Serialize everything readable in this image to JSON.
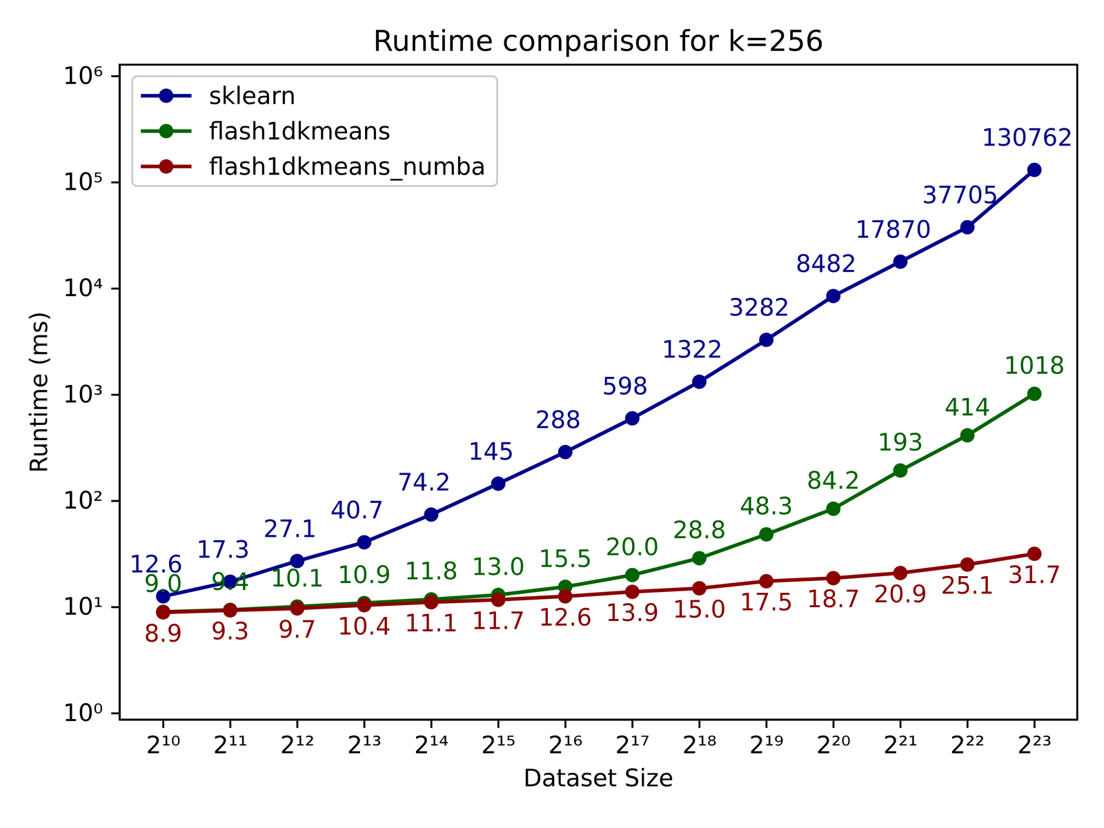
{
  "chart_data": {
    "type": "line",
    "title": "Runtime comparison for k=256",
    "xlabel": "Dataset Size",
    "ylabel": "Runtime (ms)",
    "log": true,
    "grid": false,
    "legend": "upper left",
    "data_labels": true,
    "x": [
      1024,
      2048,
      4096,
      8192,
      16384,
      32768,
      65536,
      131072,
      262144,
      524288,
      1048576,
      2097152,
      4194304,
      8388608
    ],
    "xlim": [
      652.6,
      13069000
    ],
    "xticks": [
      {
        "value": 1024,
        "label": "2¹⁰"
      },
      {
        "value": 2048,
        "label": "2¹¹"
      },
      {
        "value": 4096,
        "label": "2¹²"
      },
      {
        "value": 8192,
        "label": "2¹³"
      },
      {
        "value": 16384,
        "label": "2¹⁴"
      },
      {
        "value": 32768,
        "label": "2¹⁵"
      },
      {
        "value": 65536,
        "label": "2¹⁶"
      },
      {
        "value": 131072,
        "label": "2¹⁷"
      },
      {
        "value": 262144,
        "label": "2¹⁸"
      },
      {
        "value": 524288,
        "label": "2¹⁹"
      },
      {
        "value": 1048576,
        "label": "2²⁰"
      },
      {
        "value": 2097152,
        "label": "2²¹"
      },
      {
        "value": 4194304,
        "label": "2²²"
      },
      {
        "value": 8388608,
        "label": "2²³"
      }
    ],
    "ylim": [
      0.87,
      1280000
    ],
    "yticks": [
      {
        "value": 1,
        "label": "10⁰"
      },
      {
        "value": 10,
        "label": "10¹"
      },
      {
        "value": 100,
        "label": "10²"
      },
      {
        "value": 1000,
        "label": "10³"
      },
      {
        "value": 10000,
        "label": "10⁴"
      },
      {
        "value": 100000,
        "label": "10⁵"
      },
      {
        "value": 1000000,
        "label": "10⁶"
      }
    ],
    "series": [
      {
        "name": "sklearn",
        "color": "#00008b",
        "marker": "circle",
        "line_style": "solid",
        "values": [
          12.6,
          17.3,
          27.1,
          40.7,
          74.2,
          145,
          288,
          598,
          1322,
          3282,
          8482,
          17870,
          37705,
          130762
        ],
        "value_labels": [
          "12.6",
          "17.3",
          "27.1",
          "40.7",
          "74.2",
          "145",
          "288",
          "598",
          "1322",
          "3282",
          "8482",
          "17870",
          "37705",
          "130762"
        ]
      },
      {
        "name": "flash1dkmeans",
        "color": "#006400",
        "marker": "circle",
        "line_style": "solid",
        "values": [
          9.0,
          9.4,
          10.1,
          10.9,
          11.8,
          13.0,
          15.5,
          20.0,
          28.8,
          48.3,
          84.2,
          193,
          414,
          1018
        ],
        "value_labels": [
          "9.0",
          "9.4",
          "10.1",
          "10.9",
          "11.8",
          "13.0",
          "15.5",
          "20.0",
          "28.8",
          "48.3",
          "84.2",
          "193",
          "414",
          "1018"
        ]
      },
      {
        "name": "flash1dkmeans_numba",
        "color": "#8b0000",
        "marker": "circle",
        "line_style": "solid",
        "values": [
          8.9,
          9.3,
          9.7,
          10.4,
          11.1,
          11.7,
          12.6,
          13.9,
          15.0,
          17.5,
          18.7,
          20.9,
          25.1,
          31.7
        ],
        "value_labels": [
          "8.9",
          "9.3",
          "9.7",
          "10.4",
          "11.1",
          "11.7",
          "12.6",
          "13.9",
          "15.0",
          "17.5",
          "18.7",
          "20.9",
          "25.1",
          "31.7"
        ]
      }
    ]
  }
}
